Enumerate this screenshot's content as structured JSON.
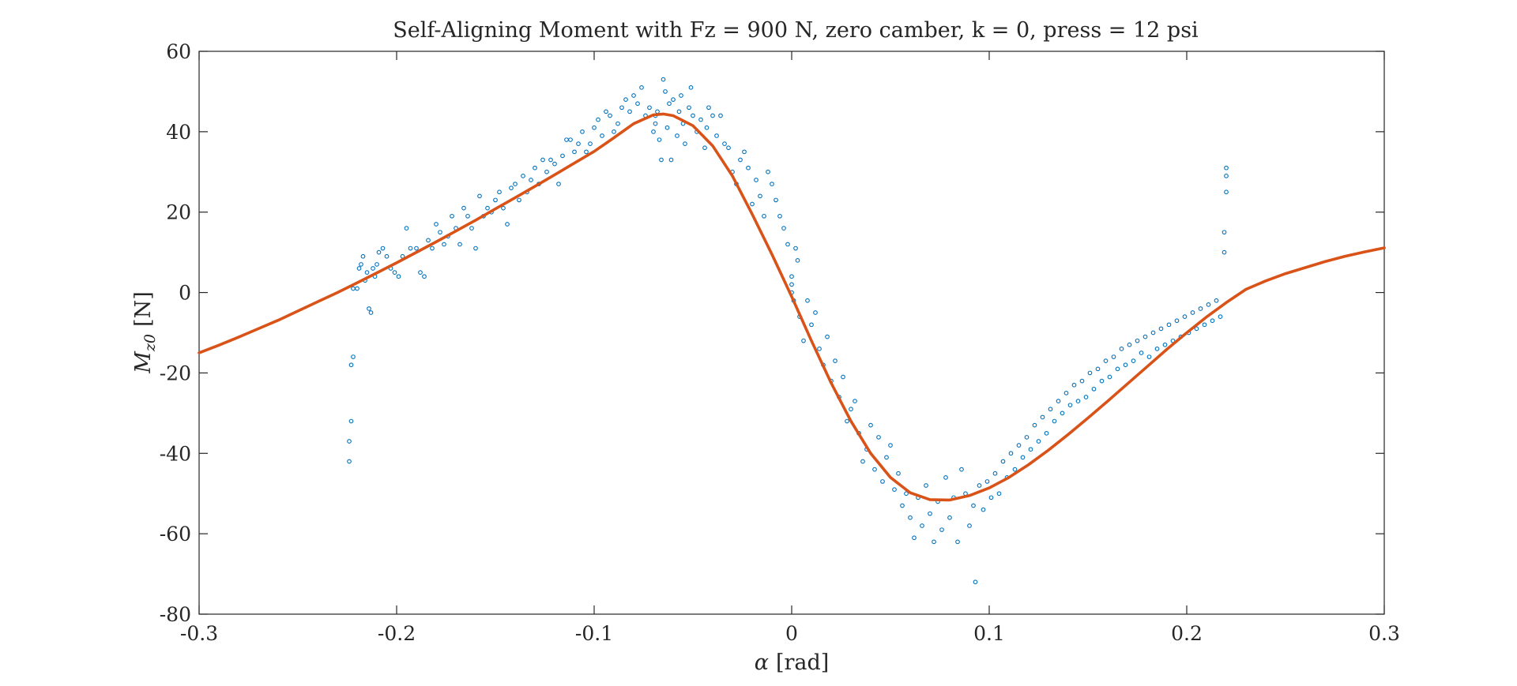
{
  "chart_data": {
    "type": "scatter",
    "title": "Self-Aligning Moment with Fz = 900 N, zero camber, k = 0, press = 12 psi",
    "xlabel_symbol": "α",
    "xlabel_unit": "[rad]",
    "ylabel_symbol": "M",
    "ylabel_subscript": "z0",
    "ylabel_unit": "[N]",
    "xlim": [
      -0.3,
      0.3
    ],
    "ylim": [
      -80,
      60
    ],
    "xticks": [
      -0.3,
      -0.2,
      -0.1,
      0,
      0.1,
      0.2,
      0.3
    ],
    "xtick_labels": [
      "-0.3",
      "-0.2",
      "-0.1",
      "0",
      "0.1",
      "0.2",
      "0.3"
    ],
    "yticks": [
      -80,
      -60,
      -40,
      -20,
      0,
      20,
      40,
      60
    ],
    "ytick_labels": [
      "-80",
      "-60",
      "-40",
      "-20",
      "0",
      "20",
      "40",
      "60"
    ],
    "grid": false,
    "legend": "none",
    "colors": {
      "data": "#0072BD",
      "fit": "#D95319",
      "axes": "#262626"
    },
    "series": [
      {
        "kind": "scatter",
        "marker": "open-circle",
        "points": [
          [
            -0.224,
            -42
          ],
          [
            -0.224,
            -37
          ],
          [
            -0.223,
            -32
          ],
          [
            -0.223,
            -18
          ],
          [
            -0.222,
            -16
          ],
          [
            -0.222,
            1
          ],
          [
            -0.22,
            1
          ],
          [
            -0.219,
            6
          ],
          [
            -0.218,
            7
          ],
          [
            -0.217,
            9
          ],
          [
            -0.216,
            3
          ],
          [
            -0.215,
            5
          ],
          [
            -0.214,
            -4
          ],
          [
            -0.213,
            -5
          ],
          [
            -0.212,
            6
          ],
          [
            -0.211,
            4
          ],
          [
            -0.21,
            7
          ],
          [
            -0.209,
            10
          ],
          [
            -0.207,
            11
          ],
          [
            -0.205,
            9
          ],
          [
            -0.203,
            6
          ],
          [
            -0.201,
            5
          ],
          [
            -0.199,
            4
          ],
          [
            -0.197,
            9
          ],
          [
            -0.195,
            16
          ],
          [
            -0.193,
            11
          ],
          [
            -0.19,
            11
          ],
          [
            -0.188,
            5
          ],
          [
            -0.186,
            4
          ],
          [
            -0.184,
            13
          ],
          [
            -0.182,
            11
          ],
          [
            -0.18,
            17
          ],
          [
            -0.178,
            15
          ],
          [
            -0.176,
            12
          ],
          [
            -0.174,
            14
          ],
          [
            -0.172,
            19
          ],
          [
            -0.17,
            16
          ],
          [
            -0.168,
            12
          ],
          [
            -0.166,
            21
          ],
          [
            -0.164,
            19
          ],
          [
            -0.162,
            16
          ],
          [
            -0.16,
            11
          ],
          [
            -0.158,
            24
          ],
          [
            -0.156,
            19
          ],
          [
            -0.154,
            21
          ],
          [
            -0.152,
            20
          ],
          [
            -0.15,
            23
          ],
          [
            -0.148,
            25
          ],
          [
            -0.146,
            21
          ],
          [
            -0.144,
            17
          ],
          [
            -0.142,
            26
          ],
          [
            -0.14,
            27
          ],
          [
            -0.138,
            23
          ],
          [
            -0.136,
            29
          ],
          [
            -0.134,
            25
          ],
          [
            -0.132,
            28
          ],
          [
            -0.13,
            31
          ],
          [
            -0.128,
            27
          ],
          [
            -0.126,
            33
          ],
          [
            -0.124,
            30
          ],
          [
            -0.122,
            33
          ],
          [
            -0.12,
            32
          ],
          [
            -0.118,
            27
          ],
          [
            -0.116,
            34
          ],
          [
            -0.114,
            38
          ],
          [
            -0.112,
            38
          ],
          [
            -0.11,
            35
          ],
          [
            -0.108,
            37
          ],
          [
            -0.106,
            40
          ],
          [
            -0.104,
            35
          ],
          [
            -0.102,
            37
          ],
          [
            -0.1,
            41
          ],
          [
            -0.098,
            43
          ],
          [
            -0.096,
            39
          ],
          [
            -0.094,
            45
          ],
          [
            -0.092,
            44
          ],
          [
            -0.09,
            40
          ],
          [
            -0.088,
            42
          ],
          [
            -0.086,
            46
          ],
          [
            -0.084,
            48
          ],
          [
            -0.082,
            45
          ],
          [
            -0.08,
            49
          ],
          [
            -0.078,
            47
          ],
          [
            -0.076,
            51
          ],
          [
            -0.074,
            44
          ],
          [
            -0.072,
            46
          ],
          [
            -0.07,
            40
          ],
          [
            -0.069,
            42
          ],
          [
            -0.069,
            44
          ],
          [
            -0.068,
            45
          ],
          [
            -0.067,
            38
          ],
          [
            -0.066,
            33
          ],
          [
            -0.065,
            53
          ],
          [
            -0.064,
            50
          ],
          [
            -0.063,
            41
          ],
          [
            -0.062,
            47
          ],
          [
            -0.061,
            33
          ],
          [
            -0.06,
            48
          ],
          [
            -0.058,
            39
          ],
          [
            -0.057,
            45
          ],
          [
            -0.056,
            49
          ],
          [
            -0.055,
            42
          ],
          [
            -0.054,
            37
          ],
          [
            -0.052,
            46
          ],
          [
            -0.051,
            51
          ],
          [
            -0.05,
            44
          ],
          [
            -0.048,
            40
          ],
          [
            -0.046,
            43
          ],
          [
            -0.044,
            36
          ],
          [
            -0.043,
            41
          ],
          [
            -0.042,
            46
          ],
          [
            -0.04,
            44
          ],
          [
            -0.038,
            39
          ],
          [
            -0.036,
            44
          ],
          [
            -0.034,
            37
          ],
          [
            -0.032,
            36
          ],
          [
            -0.03,
            30
          ],
          [
            -0.028,
            27
          ],
          [
            -0.026,
            33
          ],
          [
            -0.024,
            35
          ],
          [
            -0.022,
            31
          ],
          [
            -0.02,
            22
          ],
          [
            -0.018,
            28
          ],
          [
            -0.016,
            24
          ],
          [
            -0.014,
            19
          ],
          [
            -0.012,
            30
          ],
          [
            -0.01,
            27
          ],
          [
            -0.008,
            23
          ],
          [
            -0.006,
            19
          ],
          [
            -0.004,
            16
          ],
          [
            -0.002,
            12
          ],
          [
            0.0,
            4
          ],
          [
            0.0,
            2
          ],
          [
            0.0,
            0
          ],
          [
            0.001,
            -2
          ],
          [
            0.002,
            11
          ],
          [
            0.003,
            8
          ],
          [
            0.004,
            -6
          ],
          [
            0.006,
            -12
          ],
          [
            0.008,
            -2
          ],
          [
            0.01,
            -8
          ],
          [
            0.012,
            -5
          ],
          [
            0.014,
            -14
          ],
          [
            0.016,
            -18
          ],
          [
            0.018,
            -11
          ],
          [
            0.02,
            -22
          ],
          [
            0.022,
            -17
          ],
          [
            0.024,
            -26
          ],
          [
            0.026,
            -21
          ],
          [
            0.028,
            -32
          ],
          [
            0.03,
            -29
          ],
          [
            0.032,
            -27
          ],
          [
            0.034,
            -35
          ],
          [
            0.036,
            -42
          ],
          [
            0.038,
            -39
          ],
          [
            0.04,
            -33
          ],
          [
            0.042,
            -44
          ],
          [
            0.044,
            -36
          ],
          [
            0.046,
            -47
          ],
          [
            0.048,
            -41
          ],
          [
            0.05,
            -38
          ],
          [
            0.052,
            -49
          ],
          [
            0.054,
            -45
          ],
          [
            0.056,
            -53
          ],
          [
            0.058,
            -50
          ],
          [
            0.06,
            -56
          ],
          [
            0.062,
            -61
          ],
          [
            0.064,
            -51
          ],
          [
            0.066,
            -58
          ],
          [
            0.068,
            -48
          ],
          [
            0.07,
            -55
          ],
          [
            0.072,
            -62
          ],
          [
            0.074,
            -52
          ],
          [
            0.076,
            -59
          ],
          [
            0.078,
            -46
          ],
          [
            0.08,
            -56
          ],
          [
            0.082,
            -51
          ],
          [
            0.084,
            -62
          ],
          [
            0.086,
            -44
          ],
          [
            0.088,
            -50
          ],
          [
            0.09,
            -58
          ],
          [
            0.092,
            -53
          ],
          [
            0.093,
            -72
          ],
          [
            0.095,
            -48
          ],
          [
            0.097,
            -54
          ],
          [
            0.099,
            -47
          ],
          [
            0.101,
            -51
          ],
          [
            0.103,
            -45
          ],
          [
            0.105,
            -50
          ],
          [
            0.107,
            -42
          ],
          [
            0.109,
            -46
          ],
          [
            0.111,
            -40
          ],
          [
            0.113,
            -44
          ],
          [
            0.115,
            -38
          ],
          [
            0.117,
            -41
          ],
          [
            0.119,
            -36
          ],
          [
            0.121,
            -39
          ],
          [
            0.123,
            -33
          ],
          [
            0.125,
            -37
          ],
          [
            0.127,
            -31
          ],
          [
            0.129,
            -35
          ],
          [
            0.131,
            -29
          ],
          [
            0.133,
            -32
          ],
          [
            0.135,
            -27
          ],
          [
            0.137,
            -30
          ],
          [
            0.139,
            -25
          ],
          [
            0.141,
            -28
          ],
          [
            0.143,
            -23
          ],
          [
            0.145,
            -27
          ],
          [
            0.147,
            -22
          ],
          [
            0.149,
            -26
          ],
          [
            0.151,
            -20
          ],
          [
            0.153,
            -24
          ],
          [
            0.155,
            -19
          ],
          [
            0.157,
            -22
          ],
          [
            0.159,
            -17
          ],
          [
            0.161,
            -21
          ],
          [
            0.163,
            -16
          ],
          [
            0.165,
            -19
          ],
          [
            0.167,
            -14
          ],
          [
            0.169,
            -18
          ],
          [
            0.171,
            -13
          ],
          [
            0.173,
            -17
          ],
          [
            0.175,
            -12
          ],
          [
            0.177,
            -15
          ],
          [
            0.179,
            -11
          ],
          [
            0.181,
            -16
          ],
          [
            0.183,
            -10
          ],
          [
            0.185,
            -14
          ],
          [
            0.187,
            -9
          ],
          [
            0.189,
            -13
          ],
          [
            0.191,
            -8
          ],
          [
            0.193,
            -12
          ],
          [
            0.195,
            -7
          ],
          [
            0.197,
            -11
          ],
          [
            0.199,
            -6
          ],
          [
            0.201,
            -10
          ],
          [
            0.203,
            -5
          ],
          [
            0.205,
            -9
          ],
          [
            0.207,
            -4
          ],
          [
            0.209,
            -8
          ],
          [
            0.211,
            -3
          ],
          [
            0.213,
            -7
          ],
          [
            0.215,
            -2
          ],
          [
            0.217,
            -6
          ],
          [
            0.219,
            10
          ],
          [
            0.219,
            15
          ],
          [
            0.22,
            25
          ],
          [
            0.22,
            29
          ],
          [
            0.22,
            31
          ]
        ]
      },
      {
        "kind": "line",
        "points": [
          [
            -0.3,
            -15.0
          ],
          [
            -0.29,
            -13.1
          ],
          [
            -0.28,
            -11.1
          ],
          [
            -0.27,
            -9.0
          ],
          [
            -0.26,
            -6.9
          ],
          [
            -0.25,
            -4.6
          ],
          [
            -0.24,
            -2.3
          ],
          [
            -0.23,
            0.0
          ],
          [
            -0.22,
            2.4
          ],
          [
            -0.21,
            4.9
          ],
          [
            -0.2,
            7.4
          ],
          [
            -0.19,
            10.0
          ],
          [
            -0.18,
            12.6
          ],
          [
            -0.17,
            15.3
          ],
          [
            -0.16,
            18.0
          ],
          [
            -0.15,
            20.8
          ],
          [
            -0.14,
            23.6
          ],
          [
            -0.13,
            26.4
          ],
          [
            -0.12,
            29.3
          ],
          [
            -0.11,
            32.2
          ],
          [
            -0.1,
            35.1
          ],
          [
            -0.09,
            38.5
          ],
          [
            -0.08,
            42.0
          ],
          [
            -0.07,
            44.2
          ],
          [
            -0.065,
            44.4
          ],
          [
            -0.06,
            44.0
          ],
          [
            -0.05,
            41.5
          ],
          [
            -0.04,
            36.5
          ],
          [
            -0.03,
            29.0
          ],
          [
            -0.02,
            19.5
          ],
          [
            -0.01,
            9.5
          ],
          [
            0.0,
            -1.0
          ],
          [
            0.01,
            -12.0
          ],
          [
            0.02,
            -22.5
          ],
          [
            0.03,
            -32.0
          ],
          [
            0.04,
            -40.0
          ],
          [
            0.05,
            -46.0
          ],
          [
            0.06,
            -49.8
          ],
          [
            0.07,
            -51.5
          ],
          [
            0.08,
            -51.6
          ],
          [
            0.09,
            -50.5
          ],
          [
            0.1,
            -48.6
          ],
          [
            0.11,
            -46.0
          ],
          [
            0.12,
            -42.8
          ],
          [
            0.13,
            -39.2
          ],
          [
            0.14,
            -35.3
          ],
          [
            0.15,
            -31.2
          ],
          [
            0.16,
            -27.0
          ],
          [
            0.17,
            -22.7
          ],
          [
            0.18,
            -18.4
          ],
          [
            0.19,
            -14.1
          ],
          [
            0.2,
            -10.0
          ],
          [
            0.21,
            -6.1
          ],
          [
            0.22,
            -2.5
          ],
          [
            0.23,
            0.8
          ],
          [
            0.24,
            2.9
          ],
          [
            0.25,
            4.7
          ],
          [
            0.26,
            6.2
          ],
          [
            0.27,
            7.7
          ],
          [
            0.28,
            9.0
          ],
          [
            0.29,
            10.1
          ],
          [
            0.3,
            11.1
          ]
        ]
      }
    ]
  }
}
